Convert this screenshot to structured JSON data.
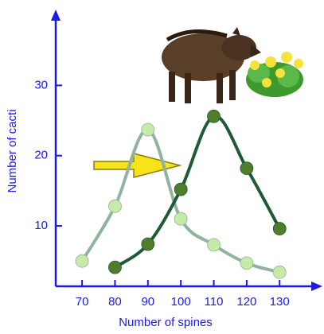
{
  "chart_data": {
    "type": "line",
    "x": [
      70,
      80,
      90,
      100,
      110,
      120,
      130
    ],
    "series": [
      {
        "color": "#8fb39c",
        "marker_color": "#c8eaa8",
        "values": [
          5.0,
          12.8,
          23.7,
          11.0,
          7.3,
          4.7,
          3.4
        ]
      },
      {
        "color": "#1f5a36",
        "marker_color": "#4f7d2c",
        "values": [
          null,
          4.1,
          7.4,
          15.2,
          25.6,
          18.2,
          9.6
        ]
      }
    ],
    "xlabel": "Number of spines",
    "ylabel": "Number of cacti",
    "xlim": [
      62,
      143
    ],
    "ylim": [
      1.4,
      40.8
    ],
    "xticks": [
      70,
      80,
      90,
      100,
      110,
      120,
      130
    ],
    "yticks": [
      10,
      20,
      30
    ],
    "axis_color": "#1a1aee"
  }
}
